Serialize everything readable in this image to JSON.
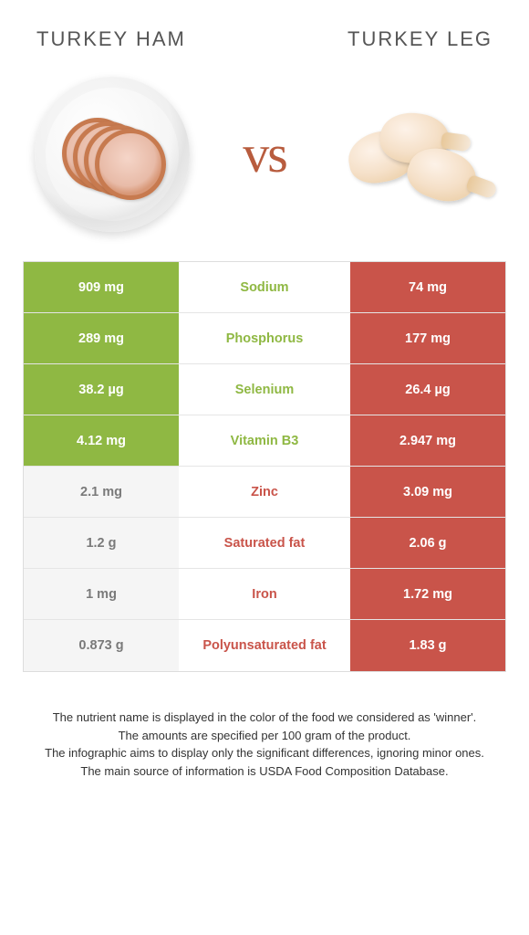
{
  "colors": {
    "left_food": "#8fb843",
    "right_food": "#c9544a",
    "left_loser_bg": "#f5f5f5",
    "left_loser_text": "#7a7a7a"
  },
  "header": {
    "left_title": "Turkey ham",
    "right_title": "Turkey leg",
    "vs_label": "vs"
  },
  "nutrients": [
    {
      "label": "Sodium",
      "left": "909 mg",
      "right": "74 mg",
      "winner": "left"
    },
    {
      "label": "Phosphorus",
      "left": "289 mg",
      "right": "177 mg",
      "winner": "left"
    },
    {
      "label": "Selenium",
      "left": "38.2 µg",
      "right": "26.4 µg",
      "winner": "left"
    },
    {
      "label": "Vitamin B3",
      "left": "4.12 mg",
      "right": "2.947 mg",
      "winner": "left"
    },
    {
      "label": "Zinc",
      "left": "2.1 mg",
      "right": "3.09 mg",
      "winner": "right"
    },
    {
      "label": "Saturated fat",
      "left": "1.2 g",
      "right": "2.06 g",
      "winner": "right"
    },
    {
      "label": "Iron",
      "left": "1 mg",
      "right": "1.72 mg",
      "winner": "right"
    },
    {
      "label": "Polyunsaturated fat",
      "left": "0.873 g",
      "right": "1.83 g",
      "winner": "right"
    }
  ],
  "footer": {
    "line1": "The nutrient name is displayed in the color of the food we considered as 'winner'.",
    "line2": "The amounts are specified per 100 gram of the product.",
    "line3": "The infographic aims to display only the significant differences, ignoring minor ones.",
    "line4": "The main source of information is USDA Food Composition Database."
  }
}
